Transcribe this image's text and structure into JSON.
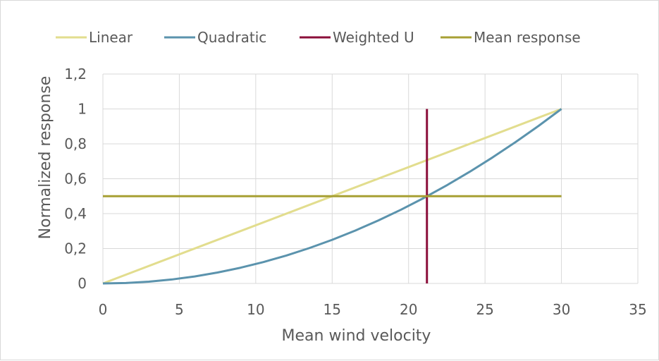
{
  "chart_data": {
    "type": "line",
    "title": "",
    "xlabel": "Mean wind velocity",
    "ylabel": "Normalized response",
    "xlim": [
      0,
      35
    ],
    "ylim": [
      0,
      1.2
    ],
    "x_ticks": [
      0,
      5,
      10,
      15,
      20,
      25,
      30,
      35
    ],
    "y_ticks": [
      0,
      0.2,
      0.4,
      0.6,
      0.8,
      1,
      1.2
    ],
    "x_tick_labels": [
      "0",
      "5",
      "10",
      "15",
      "20",
      "25",
      "30",
      "35"
    ],
    "y_tick_labels": [
      "0",
      "0,2",
      "0,4",
      "0,6",
      "0,8",
      "1",
      "1,2"
    ],
    "grid": true,
    "legend_position": "top",
    "series": [
      {
        "name": "Linear",
        "color": "#e2dd8e",
        "x": [
          0,
          30
        ],
        "y": [
          0,
          1
        ]
      },
      {
        "name": "Quadratic",
        "color": "#5b93ad",
        "x": [
          0,
          1.5,
          3,
          4.5,
          6,
          7.5,
          9,
          10.5,
          12,
          13.5,
          15,
          16.5,
          18,
          19.5,
          21,
          22.5,
          24,
          25.5,
          27,
          28.5,
          30
        ],
        "y": [
          0,
          0.0025,
          0.01,
          0.0225,
          0.04,
          0.0625,
          0.09,
          0.1225,
          0.16,
          0.2025,
          0.25,
          0.3025,
          0.36,
          0.4225,
          0.49,
          0.5625,
          0.64,
          0.7225,
          0.81,
          0.9025,
          1
        ]
      },
      {
        "name": "Weighted U",
        "color": "#8b0e3a",
        "x": [
          21.2,
          21.2
        ],
        "y": [
          0,
          1
        ]
      },
      {
        "name": "Mean response",
        "color": "#a7a034",
        "x": [
          0,
          30
        ],
        "y": [
          0.5,
          0.5
        ]
      }
    ]
  }
}
